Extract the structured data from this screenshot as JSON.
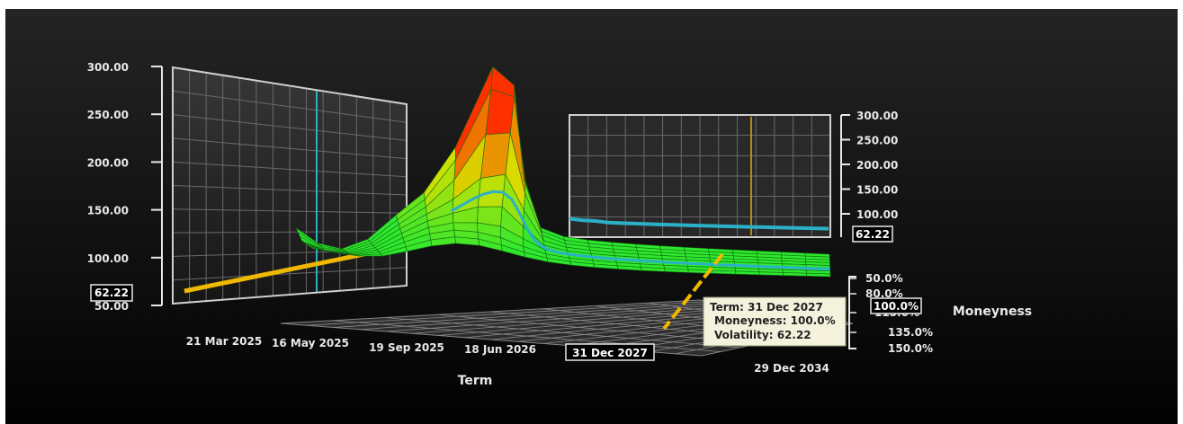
{
  "colors": {
    "background_top": "#242424",
    "background_bottom": "#020202",
    "surface_low": "#2ee82e",
    "surface_mid": "#d8e000",
    "surface_high": "#ff3000",
    "crosshair_term": "#f0b800",
    "crosshair_moneyness": "#2bb0c8",
    "panel_frame": "#d0d0d0",
    "tooltip_bg": "#f4f2dc"
  },
  "left_panel": {
    "y_ticks": [
      "300.00",
      "250.00",
      "200.00",
      "150.00",
      "100.00",
      "50.00"
    ],
    "current_value": "62.22"
  },
  "right_panel": {
    "y_ticks": [
      "300.00",
      "250.00",
      "200.00",
      "150.00",
      "100.00"
    ],
    "current_value": "62.22"
  },
  "term_axis": {
    "title": "Term",
    "ticks": [
      "21 Mar 2025",
      "16 May 2025",
      "19 Sep 2025",
      "18 Jun 2026",
      "31 Dec 2027",
      "29 Dec 2034"
    ],
    "selected": "31 Dec 2027"
  },
  "moneyness_axis": {
    "title": "Moneyness",
    "ticks": [
      "50.0%",
      "80.0%",
      "115.0%",
      "135.0%",
      "150.0%"
    ],
    "selected": "100.0%"
  },
  "tooltip": {
    "term": "Term: 31 Dec 2027",
    "moneyness": "Moneyness: 100.0%",
    "volatility": "Volatility: 62.22"
  },
  "chart_data": {
    "type": "surface",
    "z_range": [
      50,
      300
    ],
    "terms": [
      "21 Mar 2025",
      "16 May 2025",
      "19 Sep 2025",
      "18 Jun 2026",
      "31 Dec 2027",
      "29 Dec 2034"
    ],
    "moneyness": [
      "50.0%",
      "80.0%",
      "100.0%",
      "115.0%",
      "135.0%",
      "150.0%"
    ],
    "selected_point": {
      "term": "31 Dec 2027",
      "moneyness": "100.0%",
      "volatility": 62.22
    },
    "term_slice_at_moneyness_100": {
      "x": [
        "21 Mar 2025",
        "29 Dec 2034"
      ],
      "y": [
        62,
        80
      ]
    },
    "moneyness_slice_at_term_2027": {
      "x": [
        "50.0%",
        "150.0%"
      ],
      "y": [
        88,
        70
      ]
    }
  }
}
